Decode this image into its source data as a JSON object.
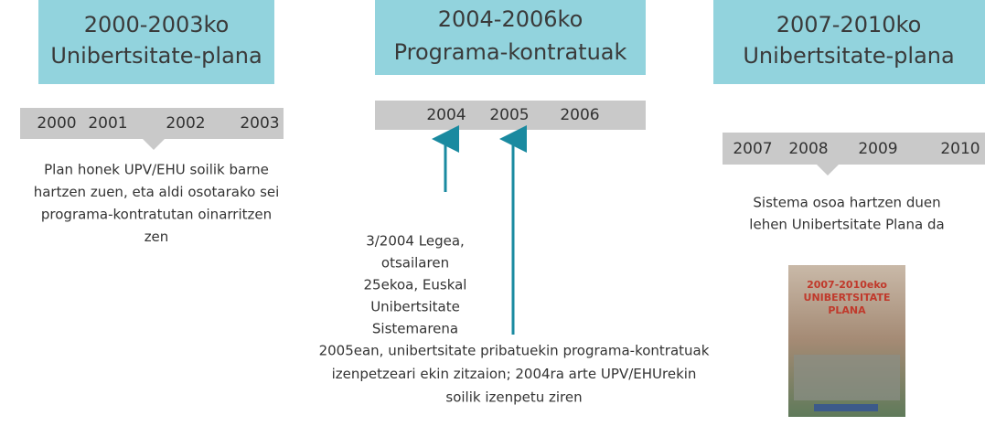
{
  "columns": [
    {
      "title": [
        "2000-2003ko",
        "Unibertsitate-plana"
      ],
      "years": [
        "2000",
        "2001",
        "2002",
        "2003"
      ],
      "description": [
        "Plan honek UPV/EHU soilik barne",
        "hartzen zuen, eta aldi osotarako sei",
        "programa-kontratutan oinarritzen",
        "zen"
      ]
    },
    {
      "title": [
        "2004-2006ko",
        "Programa-kontratuak"
      ],
      "years": [
        "2004",
        "2005",
        "2006"
      ],
      "notes": [
        [
          "3/2004 Legea,",
          "otsailaren",
          "25ekoa, Euskal",
          "Unibertsitate",
          "Sistemarena"
        ],
        [
          "2005ean, unibertsitate pribatuekin programa-kontratuak",
          "izenpetzeari ekin zitzaion; 2004ra arte UPV/EHUrekin",
          "soilik izenpetu ziren"
        ]
      ]
    },
    {
      "title": [
        "2007-2010ko",
        "Unibertsitate-plana"
      ],
      "years": [
        "2007",
        "2008",
        "2009",
        "2010"
      ],
      "description": [
        "Sistema osoa hartzen duen",
        "lehen Unibertsitate Plana da"
      ],
      "cover": [
        "2007-2010eko",
        "UNIBERTSITATE",
        "PLANA"
      ]
    }
  ]
}
